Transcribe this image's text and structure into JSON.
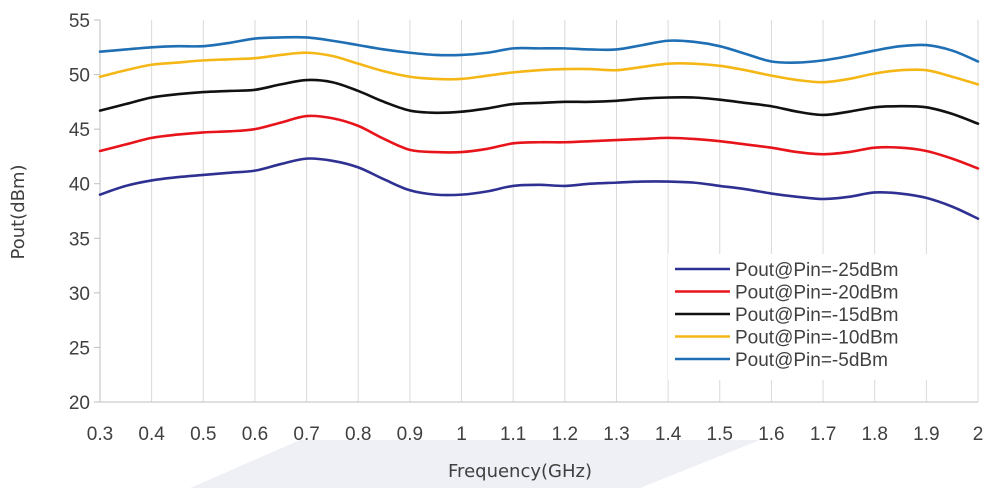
{
  "chart_data": {
    "type": "line",
    "title": "",
    "xlabel": "Frequency(GHz)",
    "ylabel": "Pout(dBm)",
    "xlim": [
      0.3,
      2.0
    ],
    "ylim": [
      20,
      55
    ],
    "x_ticks": [
      "0.3",
      "0.4",
      "0.5",
      "0.6",
      "0.7",
      "0.8",
      "0.9",
      "1",
      "1.1",
      "1.2",
      "1.3",
      "1.4",
      "1.5",
      "1.6",
      "1.7",
      "1.8",
      "1.9",
      "2"
    ],
    "y_ticks": [
      "20",
      "25",
      "30",
      "35",
      "40",
      "45",
      "50",
      "55"
    ],
    "grid": "vertical",
    "legend_position": "bottom-right",
    "x": [
      0.3,
      0.35,
      0.4,
      0.45,
      0.5,
      0.55,
      0.6,
      0.65,
      0.7,
      0.75,
      0.8,
      0.85,
      0.9,
      0.95,
      1.0,
      1.05,
      1.1,
      1.15,
      1.2,
      1.25,
      1.3,
      1.35,
      1.4,
      1.45,
      1.5,
      1.55,
      1.6,
      1.65,
      1.7,
      1.75,
      1.8,
      1.85,
      1.9,
      1.95,
      2.0
    ],
    "series": [
      {
        "name": "Pout@Pin=-25dBm",
        "color": "#2E3192",
        "values": [
          39.0,
          39.8,
          40.3,
          40.6,
          40.8,
          41.0,
          41.2,
          41.8,
          42.3,
          42.1,
          41.5,
          40.4,
          39.4,
          39.0,
          39.0,
          39.3,
          39.8,
          39.9,
          39.8,
          40.0,
          40.1,
          40.2,
          40.2,
          40.1,
          39.8,
          39.5,
          39.1,
          38.8,
          38.6,
          38.8,
          39.2,
          39.1,
          38.7,
          37.9,
          36.8
        ]
      },
      {
        "name": "Pout@Pin=-20dBm",
        "color": "#E8141B",
        "values": [
          43.0,
          43.6,
          44.2,
          44.5,
          44.7,
          44.8,
          45.0,
          45.6,
          46.2,
          46.0,
          45.3,
          44.1,
          43.1,
          42.9,
          42.9,
          43.2,
          43.7,
          43.8,
          43.8,
          43.9,
          44.0,
          44.1,
          44.2,
          44.1,
          43.9,
          43.6,
          43.3,
          42.9,
          42.7,
          42.9,
          43.3,
          43.3,
          43.0,
          42.3,
          41.4
        ]
      },
      {
        "name": "Pout@Pin=-15dBm",
        "color": "#111111",
        "values": [
          46.7,
          47.3,
          47.9,
          48.2,
          48.4,
          48.5,
          48.6,
          49.1,
          49.5,
          49.3,
          48.5,
          47.5,
          46.7,
          46.5,
          46.6,
          46.9,
          47.3,
          47.4,
          47.5,
          47.5,
          47.6,
          47.8,
          47.9,
          47.9,
          47.7,
          47.4,
          47.1,
          46.6,
          46.3,
          46.6,
          47.0,
          47.1,
          47.0,
          46.4,
          45.5
        ]
      },
      {
        "name": "Pout@Pin=-10dBm",
        "color": "#F5B716",
        "values": [
          49.8,
          50.4,
          50.9,
          51.1,
          51.3,
          51.4,
          51.5,
          51.8,
          52.0,
          51.7,
          51.0,
          50.3,
          49.8,
          49.6,
          49.6,
          49.9,
          50.2,
          50.4,
          50.5,
          50.5,
          50.4,
          50.7,
          51.0,
          51.0,
          50.8,
          50.4,
          49.9,
          49.5,
          49.3,
          49.6,
          50.1,
          50.4,
          50.4,
          49.8,
          49.1
        ]
      },
      {
        "name": "Pout@Pin=-5dBm",
        "color": "#1F6FB5",
        "values": [
          52.1,
          52.3,
          52.5,
          52.6,
          52.6,
          52.9,
          53.3,
          53.4,
          53.4,
          53.1,
          52.7,
          52.3,
          52.0,
          51.8,
          51.8,
          52.0,
          52.4,
          52.4,
          52.4,
          52.3,
          52.3,
          52.7,
          53.1,
          53.0,
          52.6,
          51.9,
          51.2,
          51.1,
          51.3,
          51.7,
          52.2,
          52.6,
          52.7,
          52.2,
          51.2
        ]
      }
    ]
  }
}
